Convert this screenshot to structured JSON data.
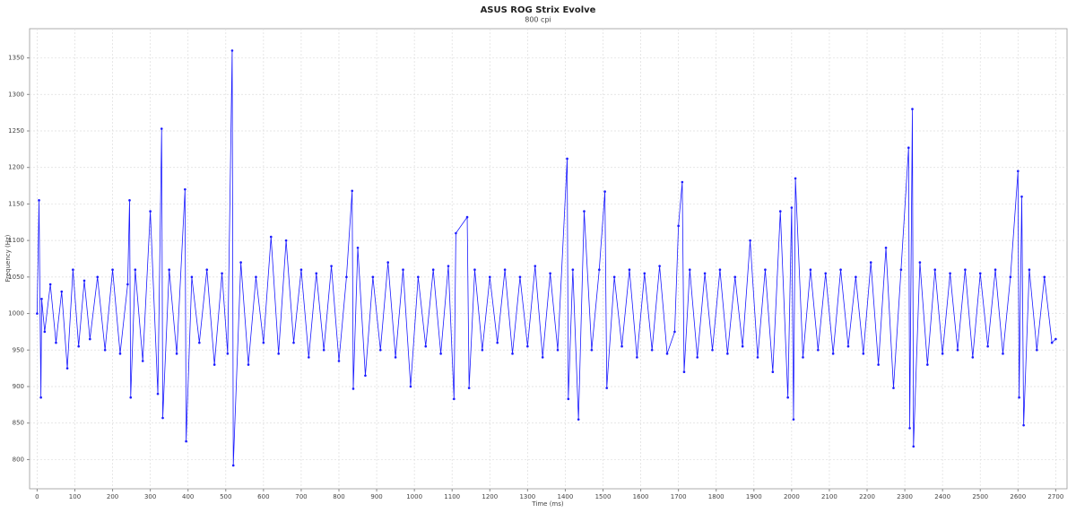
{
  "chart_data": {
    "type": "line",
    "title": "ASUS ROG Strix Evolve",
    "subtitle": "800 cpi",
    "x_label": "Time (ms)",
    "y_label": "Frequency (Hz)",
    "color": "#1a1aff",
    "grid": true,
    "xlim": [
      -20,
      2730
    ],
    "ylim": [
      760,
      1390
    ],
    "xticks": [
      0,
      100,
      200,
      300,
      400,
      500,
      600,
      700,
      800,
      900,
      1000,
      1100,
      1200,
      1300,
      1400,
      1500,
      1600,
      1700,
      1800,
      1900,
      2000,
      2100,
      2200,
      2300,
      2400,
      2500,
      2600,
      2700
    ],
    "yticks": [
      800,
      850,
      900,
      950,
      1000,
      1050,
      1100,
      1150,
      1200,
      1250,
      1300,
      1350
    ],
    "x": [
      0,
      5,
      10,
      12,
      20,
      35,
      50,
      65,
      80,
      95,
      110,
      125,
      140,
      160,
      180,
      200,
      220,
      240,
      245,
      248,
      260,
      280,
      300,
      320,
      330,
      333,
      350,
      370,
      392,
      395,
      410,
      430,
      450,
      470,
      490,
      505,
      517,
      520,
      540,
      560,
      580,
      600,
      620,
      640,
      660,
      680,
      700,
      720,
      740,
      760,
      780,
      800,
      820,
      835,
      838,
      850,
      870,
      890,
      910,
      930,
      950,
      970,
      990,
      1010,
      1030,
      1050,
      1070,
      1090,
      1105,
      1110,
      1140,
      1145,
      1160,
      1180,
      1200,
      1220,
      1240,
      1260,
      1280,
      1300,
      1320,
      1340,
      1360,
      1380,
      1405,
      1408,
      1420,
      1435,
      1450,
      1470,
      1490,
      1505,
      1510,
      1530,
      1550,
      1570,
      1590,
      1610,
      1630,
      1650,
      1670,
      1690,
      1700,
      1710,
      1715,
      1730,
      1750,
      1770,
      1790,
      1810,
      1830,
      1850,
      1870,
      1890,
      1910,
      1930,
      1950,
      1970,
      1990,
      2000,
      2005,
      2010,
      2030,
      2050,
      2070,
      2090,
      2110,
      2130,
      2150,
      2170,
      2190,
      2210,
      2230,
      2250,
      2270,
      2290,
      2310,
      2313,
      2320,
      2323,
      2340,
      2360,
      2380,
      2400,
      2420,
      2440,
      2460,
      2480,
      2500,
      2520,
      2540,
      2560,
      2580,
      2600,
      2603,
      2610,
      2615,
      2630,
      2650,
      2670,
      2690,
      2700
    ],
    "values": [
      1000,
      1155,
      885,
      1020,
      975,
      1040,
      960,
      1030,
      925,
      1060,
      955,
      1045,
      965,
      1050,
      950,
      1060,
      945,
      1040,
      1155,
      885,
      1060,
      935,
      1140,
      890,
      1253,
      857,
      1060,
      945,
      1170,
      825,
      1050,
      960,
      1060,
      930,
      1055,
      945,
      1360,
      792,
      1070,
      930,
      1050,
      960,
      1105,
      945,
      1100,
      960,
      1060,
      940,
      1055,
      950,
      1065,
      935,
      1050,
      1168,
      897,
      1090,
      915,
      1050,
      950,
      1070,
      940,
      1060,
      900,
      1050,
      955,
      1060,
      945,
      1065,
      883,
      1110,
      1132,
      898,
      1060,
      950,
      1050,
      960,
      1060,
      945,
      1050,
      955,
      1065,
      940,
      1055,
      950,
      1212,
      883,
      1060,
      855,
      1140,
      950,
      1060,
      1167,
      898,
      1050,
      955,
      1060,
      940,
      1055,
      950,
      1065,
      945,
      975,
      1120,
      1180,
      920,
      1060,
      940,
      1055,
      950,
      1060,
      945,
      1050,
      955,
      1100,
      940,
      1060,
      920,
      1140,
      885,
      1145,
      855,
      1185,
      940,
      1060,
      950,
      1055,
      945,
      1060,
      955,
      1050,
      945,
      1070,
      930,
      1090,
      898,
      1060,
      1227,
      843,
      1280,
      818,
      1070,
      930,
      1060,
      945,
      1055,
      950,
      1060,
      940,
      1055,
      955,
      1060,
      945,
      1050,
      1195,
      885,
      1160,
      847,
      1060,
      950,
      1050,
      960,
      965
    ]
  }
}
